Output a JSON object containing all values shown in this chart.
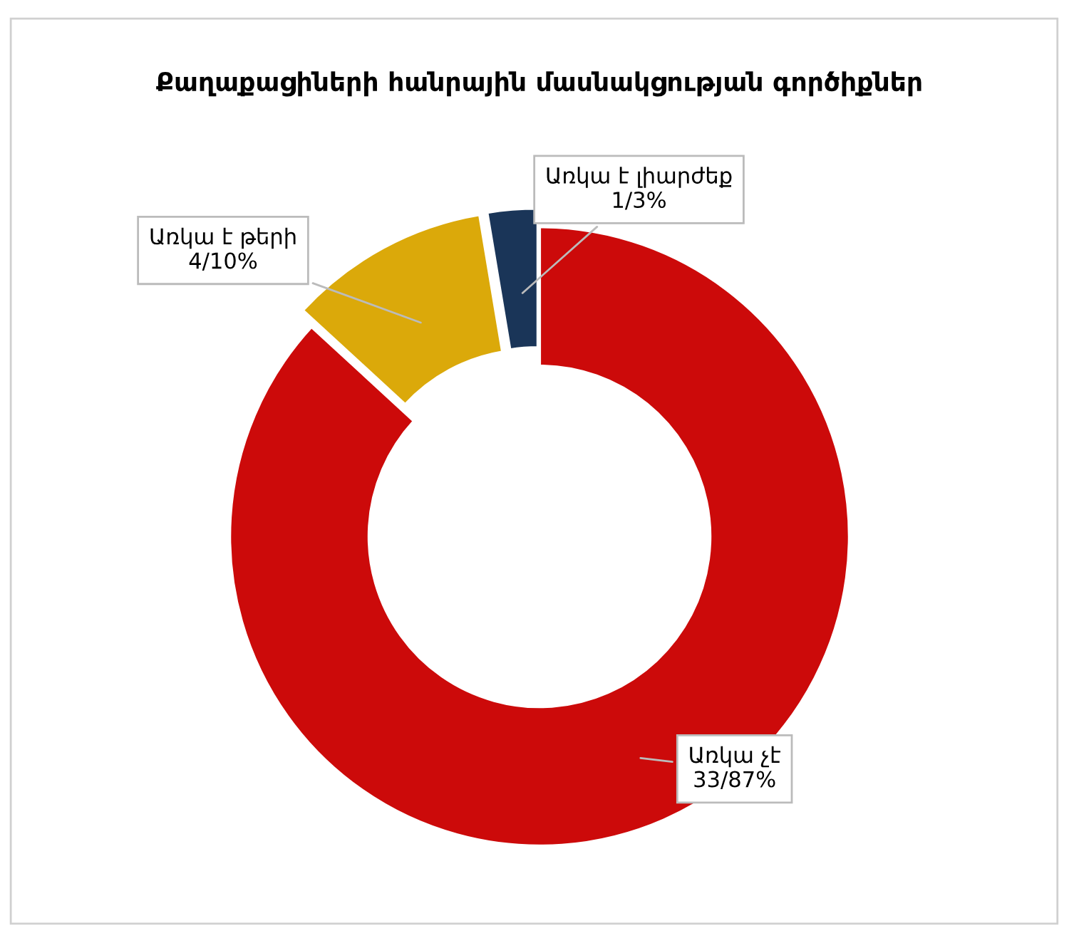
{
  "chart_data": {
    "type": "donut",
    "title": "Քաղաքացիների հանրային մասնակցության գործիքներ",
    "categories": [
      "Առկա չէ",
      "Առկա է թերի",
      "Առկա է լիարժեք"
    ],
    "values": [
      33,
      4,
      1
    ],
    "value_labels": [
      "33/87%",
      "4/10%",
      "1/3%"
    ],
    "colors": [
      "#cc0a0a",
      "#dba90a",
      "#1a3558"
    ],
    "legend": false
  }
}
